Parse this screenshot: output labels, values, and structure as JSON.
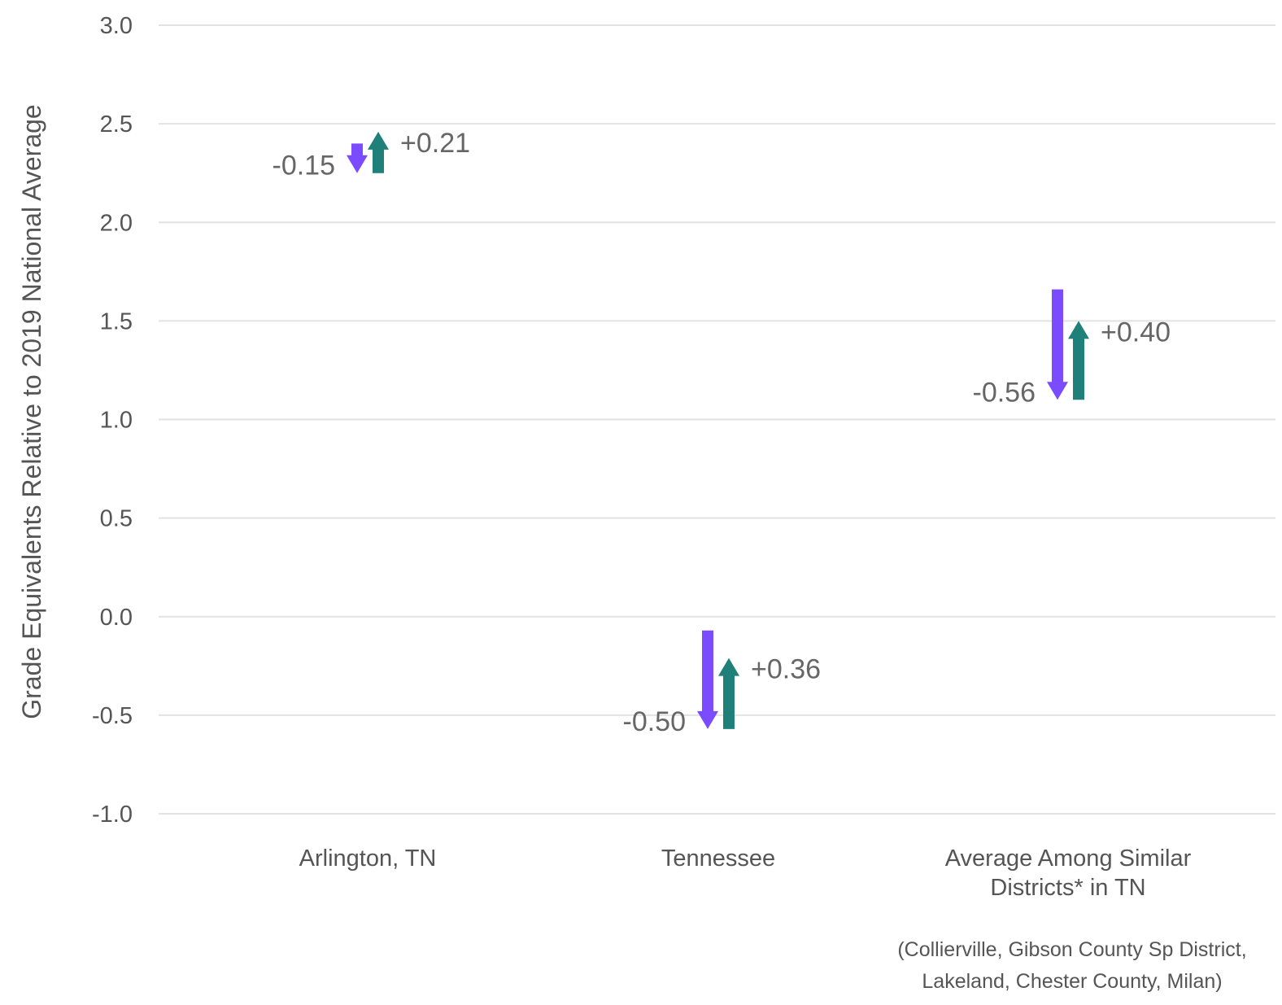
{
  "chart_data": {
    "type": "arrow",
    "title": "",
    "xlabel": "",
    "ylabel": "Grade Equivalents Relative to 2019 National Average",
    "ylim": [
      -1.0,
      3.0
    ],
    "yticks": [
      "3.0",
      "2.5",
      "2.0",
      "1.5",
      "1.0",
      "0.5",
      "0.0",
      "-0.5",
      "-1.0"
    ],
    "ytick_values": [
      3.0,
      2.5,
      2.0,
      1.5,
      1.0,
      0.5,
      0.0,
      -0.5,
      -1.0
    ],
    "grid": true,
    "colors": {
      "decline": "#7b4bff",
      "recovery": "#1f8079",
      "grid": "#e2e2e2",
      "text": "#555555"
    },
    "categories": [
      {
        "name_lines": [
          "Arlington, TN"
        ],
        "decline": {
          "start": 2.4,
          "end": 2.25,
          "label": "-0.15"
        },
        "recovery": {
          "start": 2.25,
          "end": 2.46,
          "label": "+0.21"
        }
      },
      {
        "name_lines": [
          "Tennessee"
        ],
        "decline": {
          "start": -0.07,
          "end": -0.57,
          "label": "-0.50"
        },
        "recovery": {
          "start": -0.57,
          "end": -0.21,
          "label": "+0.36"
        }
      },
      {
        "name_lines": [
          "Average Among Similar",
          "Districts* in TN"
        ],
        "decline": {
          "start": 1.66,
          "end": 1.1,
          "label": "-0.56"
        },
        "recovery": {
          "start": 1.1,
          "end": 1.5,
          "label": "+0.40"
        }
      }
    ],
    "footnote_lines": [
      "(Collierville, Gibson County Sp District,",
      "Lakeland, Chester County, Milan)"
    ]
  }
}
